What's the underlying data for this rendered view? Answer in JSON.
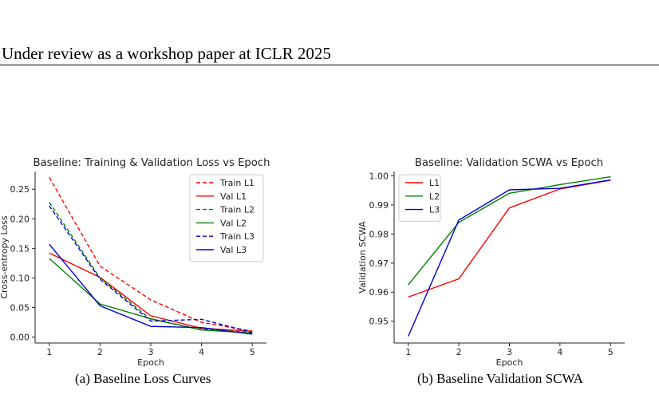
{
  "header": {
    "text": "Under review as a workshop paper at ICLR 2025"
  },
  "captions": [
    {
      "label": "(a)",
      "text": "Baseline Loss Curves"
    },
    {
      "label": "(b)",
      "text": "Baseline Validation SCWA"
    }
  ],
  "chart_data": [
    {
      "type": "line",
      "title": "Baseline: Training & Validation Loss vs Epoch",
      "xlabel": "Epoch",
      "ylabel": "Cross-entropy Loss",
      "x": [
        1,
        2,
        3,
        4,
        5
      ],
      "xticks": [
        "1",
        "2",
        "3",
        "4",
        "5"
      ],
      "yticks": [
        "0.00",
        "0.05",
        "0.10",
        "0.15",
        "0.20",
        "0.25"
      ],
      "ylim": [
        -0.01,
        0.28
      ],
      "legend_position": "top-right",
      "series": [
        {
          "name": "Train L1",
          "color": "#ff0000",
          "dash": "dashed",
          "values": [
            0.27,
            0.12,
            0.063,
            0.025,
            0.01
          ]
        },
        {
          "name": "Val L1",
          "color": "#ff0000",
          "dash": "solid",
          "values": [
            0.142,
            0.101,
            0.036,
            0.015,
            0.01
          ]
        },
        {
          "name": "Train L2",
          "color": "#008000",
          "dash": "dashed",
          "values": [
            0.228,
            0.1,
            0.03,
            0.013,
            0.008
          ]
        },
        {
          "name": "Val L2",
          "color": "#008000",
          "dash": "solid",
          "values": [
            0.133,
            0.056,
            0.031,
            0.012,
            0.007
          ]
        },
        {
          "name": "Train L3",
          "color": "#0000cc",
          "dash": "dashed",
          "values": [
            0.222,
            0.098,
            0.027,
            0.03,
            0.008
          ]
        },
        {
          "name": "Val L3",
          "color": "#0000cc",
          "dash": "solid",
          "values": [
            0.157,
            0.053,
            0.018,
            0.016,
            0.005
          ]
        }
      ]
    },
    {
      "type": "line",
      "title": "Baseline: Validation SCWA vs Epoch",
      "xlabel": "Epoch",
      "ylabel": "Validation SCWA",
      "x": [
        1,
        2,
        3,
        4,
        5
      ],
      "xticks": [
        "1",
        "2",
        "3",
        "4",
        "5"
      ],
      "yticks": [
        "0.95",
        "0.96",
        "0.97",
        "0.98",
        "0.99",
        "1.00"
      ],
      "ylim": [
        0.9425,
        1.0015
      ],
      "legend_position": "top-left",
      "series": [
        {
          "name": "L1",
          "color": "#ff0000",
          "dash": "solid",
          "values": [
            0.9583,
            0.9646,
            0.989,
            0.9955,
            0.9985
          ]
        },
        {
          "name": "L2",
          "color": "#008000",
          "dash": "solid",
          "values": [
            0.9625,
            0.984,
            0.994,
            0.997,
            0.9997
          ]
        },
        {
          "name": "L3",
          "color": "#0000cc",
          "dash": "solid",
          "values": [
            0.9448,
            0.9848,
            0.9952,
            0.9957,
            0.9986
          ]
        }
      ]
    }
  ]
}
